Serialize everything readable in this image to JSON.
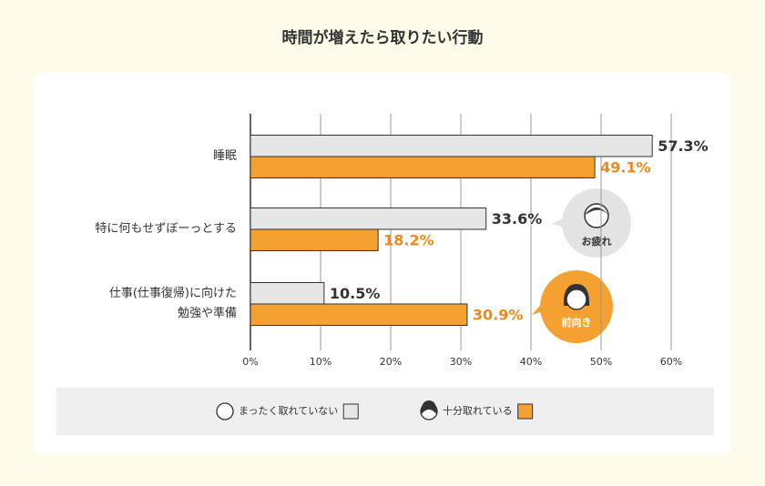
{
  "chart_data": {
    "type": "hbar",
    "title": "時間が増えたら取りたい行動",
    "categories": [
      "睡眠",
      "特に何もせずぼーっとする",
      "仕事(仕事復帰)に向けた\n勉強や準備"
    ],
    "series": [
      {
        "name": "まったく取れていない",
        "color": "#e6e6e6",
        "label_color": "#333333",
        "values": [
          57.3,
          33.6,
          10.5
        ],
        "value_labels": [
          "57.3%",
          "33.6%",
          "10.5%"
        ]
      },
      {
        "name": "十分取れている",
        "color": "#f5a132",
        "label_color": "#ea8a1d",
        "values": [
          49.1,
          18.2,
          30.9
        ],
        "value_labels": [
          "49.1%",
          "18.2%",
          "30.9%"
        ]
      }
    ],
    "xlim": [
      0,
      60
    ],
    "xticks": [
      {
        "value": 0,
        "label": "0%"
      },
      {
        "value": 10,
        "label": "10%"
      },
      {
        "value": 20,
        "label": "20%"
      },
      {
        "value": 30,
        "label": "30%"
      },
      {
        "value": 40,
        "label": "40%"
      },
      {
        "value": 50,
        "label": "50%"
      },
      {
        "value": 60,
        "label": "60%"
      }
    ],
    "grid": true,
    "annotations": [
      "お疲れ",
      "前向き"
    ]
  }
}
